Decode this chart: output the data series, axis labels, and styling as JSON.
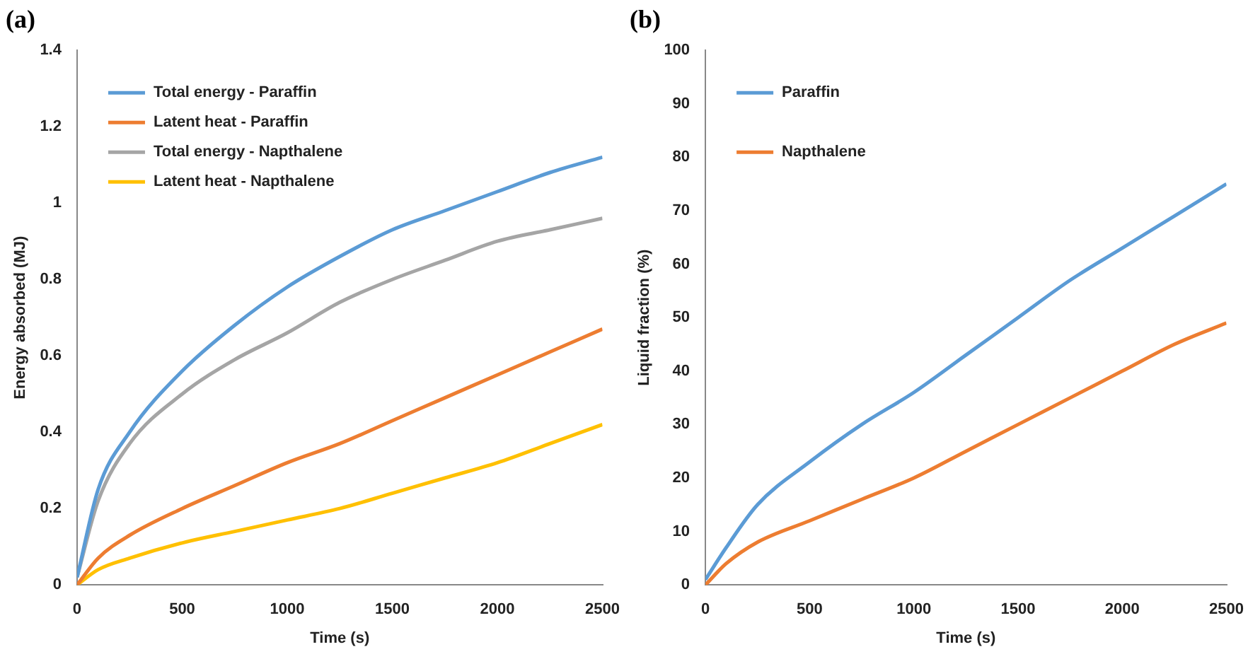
{
  "chart_data": [
    {
      "type": "line",
      "title": "(a)",
      "xlabel": "Time (s)",
      "ylabel": "Energy absorbed (MJ)",
      "x": [
        0,
        100,
        250,
        500,
        750,
        1000,
        1250,
        1500,
        1750,
        2000,
        2250,
        2500
      ],
      "xlim": [
        0,
        2500
      ],
      "xticks": [
        0,
        500,
        1000,
        1500,
        2000,
        2500
      ],
      "ylim": [
        0,
        1.4
      ],
      "yticks": [
        0,
        0.2,
        0.4,
        0.6,
        0.8,
        1,
        1.2,
        1.4
      ],
      "grid": false,
      "legend": "top left",
      "marker": "none",
      "line_style": "solid",
      "series": [
        {
          "name": "Total energy - Paraffin",
          "color": "#5b9bd5",
          "values": [
            0.02,
            0.25,
            0.4,
            0.56,
            0.68,
            0.78,
            0.86,
            0.93,
            0.98,
            1.03,
            1.08,
            1.12
          ]
        },
        {
          "name": "Latent heat - Paraffin",
          "color": "#ed7d31",
          "values": [
            0,
            0.07,
            0.13,
            0.2,
            0.26,
            0.32,
            0.37,
            0.43,
            0.49,
            0.55,
            0.61,
            0.67
          ]
        },
        {
          "name": "Total energy - Napthalene",
          "color": "#a5a5a5",
          "values": [
            0.02,
            0.22,
            0.37,
            0.5,
            0.59,
            0.66,
            0.74,
            0.8,
            0.85,
            0.9,
            0.93,
            0.96
          ]
        },
        {
          "name": "Latent heat - Napthalene",
          "color": "#ffc000",
          "values": [
            0,
            0.04,
            0.07,
            0.11,
            0.14,
            0.17,
            0.2,
            0.24,
            0.28,
            0.32,
            0.37,
            0.42
          ]
        }
      ]
    },
    {
      "type": "line",
      "title": "(b)",
      "xlabel": "Time (s)",
      "ylabel": "Liquid fraction (%)",
      "x": [
        0,
        100,
        250,
        500,
        750,
        1000,
        1250,
        1500,
        1750,
        2000,
        2250,
        2500
      ],
      "xlim": [
        0,
        2500
      ],
      "xticks": [
        0,
        500,
        1000,
        1500,
        2000,
        2500
      ],
      "ylim": [
        0,
        100
      ],
      "yticks": [
        0,
        10,
        20,
        30,
        40,
        50,
        60,
        70,
        80,
        90,
        100
      ],
      "grid": false,
      "legend": "top left",
      "marker": "none",
      "line_style": "solid",
      "series": [
        {
          "name": "Paraffin",
          "color": "#5b9bd5",
          "values": [
            1,
            7,
            15,
            23,
            30,
            36,
            43,
            50,
            57,
            63,
            69,
            75
          ]
        },
        {
          "name": "Napthalene",
          "color": "#ed7d31",
          "values": [
            0,
            4,
            8,
            12,
            16,
            20,
            25,
            30,
            35,
            40,
            45,
            49
          ]
        }
      ]
    }
  ]
}
